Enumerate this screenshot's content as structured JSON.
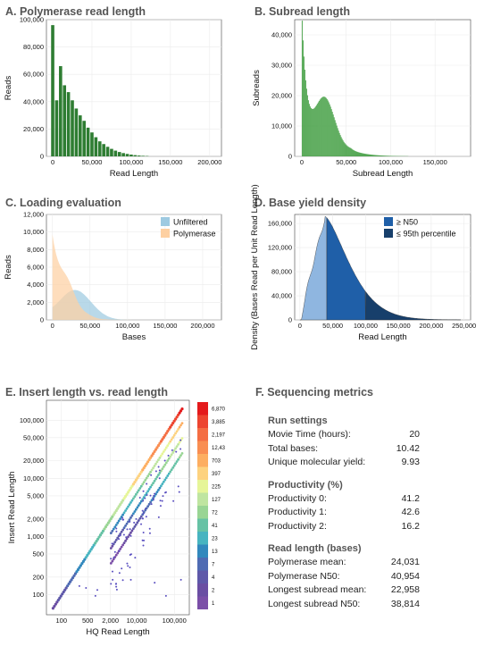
{
  "chart_data": [
    {
      "id": "A",
      "type": "bar",
      "title": "A. Polymerase read length",
      "xlabel": "Read Length",
      "ylabel": "Reads",
      "xlim": [
        -8000,
        215000
      ],
      "ylim": [
        0,
        100000
      ],
      "xticks": [
        0,
        50000,
        100000,
        150000,
        200000
      ],
      "xtick_labels": [
        "0",
        "50,000",
        "100,000",
        "150,000",
        "200,000"
      ],
      "yticks": [
        0,
        20000,
        40000,
        60000,
        80000,
        100000
      ],
      "ytick_labels": [
        "0",
        "20,000",
        "40,000",
        "60,000",
        "80,000",
        "100,000"
      ],
      "bin_width": 5000,
      "x": [
        0,
        5000,
        10000,
        15000,
        20000,
        25000,
        30000,
        35000,
        40000,
        45000,
        50000,
        55000,
        60000,
        65000,
        70000,
        75000,
        80000,
        85000,
        90000,
        95000,
        100000,
        105000,
        110000,
        115000,
        120000
      ],
      "values": [
        96000,
        41000,
        66000,
        52000,
        47000,
        41000,
        35000,
        30000,
        26000,
        21000,
        17500,
        14000,
        11000,
        9000,
        7000,
        5500,
        4200,
        3200,
        2400,
        1800,
        1300,
        900,
        600,
        400,
        250
      ],
      "color": "#2e7d32"
    },
    {
      "id": "B",
      "type": "bar",
      "title": "B. Subread length",
      "xlabel": "Subread Length",
      "ylabel": "Subreads",
      "xlim": [
        -8000,
        190000
      ],
      "ylim": [
        0,
        45000
      ],
      "xticks": [
        0,
        50000,
        100000,
        150000
      ],
      "xtick_labels": [
        "0",
        "50,000",
        "100,000",
        "150,000"
      ],
      "yticks": [
        0,
        10000,
        20000,
        30000,
        40000
      ],
      "ytick_labels": [
        "0",
        "10,000",
        "20,000",
        "30,000",
        "40,000"
      ],
      "color": "#3a9a3a"
    },
    {
      "id": "C",
      "type": "area",
      "title": "C. Loading evaluation",
      "xlabel": "Bases",
      "ylabel": "Reads",
      "xlim": [
        -8000,
        225000
      ],
      "ylim": [
        0,
        12000
      ],
      "xticks": [
        0,
        50000,
        100000,
        150000,
        200000
      ],
      "xtick_labels": [
        "0",
        "50,000",
        "100,000",
        "150,000",
        "200,000"
      ],
      "yticks": [
        0,
        2000,
        4000,
        6000,
        8000,
        10000,
        12000
      ],
      "ytick_labels": [
        "0",
        "2,000",
        "4,000",
        "6,000",
        "8,000",
        "10,000",
        "12,000"
      ],
      "legend_position": "top-right",
      "series": [
        {
          "name": "Unfiltered",
          "color": "#9ecae1"
        },
        {
          "name": "Polymerase",
          "color": "#fdd0a2"
        }
      ]
    },
    {
      "id": "D",
      "type": "area",
      "title": "D. Base yield density",
      "xlabel": "Read Length",
      "ylabel": "Density (Bases Read per Unit Read Length)",
      "xlim": [
        -8000,
        260000
      ],
      "ylim": [
        0,
        175000
      ],
      "xticks": [
        0,
        50000,
        100000,
        150000,
        200000,
        250000
      ],
      "xtick_labels": [
        "0",
        "50,000",
        "100,000",
        "150,000",
        "200,000",
        "250,000"
      ],
      "yticks": [
        0,
        40000,
        80000,
        120000,
        160000
      ],
      "ytick_labels": [
        "0",
        "40,000",
        "80,000",
        "120,000",
        "160,000"
      ],
      "legend_position": "top-right",
      "thresholds": {
        "n50": 40954,
        "p95": 100000
      },
      "series": [
        {
          "name": "≥ N50",
          "color": "#1f5fa8"
        },
        {
          "name": "≤ 95th percentile",
          "color": "#173f6b"
        }
      ]
    },
    {
      "id": "E",
      "type": "heatmap",
      "title": "E. Insert length vs. read length",
      "xlabel": "HQ Read Length",
      "ylabel": "Insert Read Length",
      "xscale": "log",
      "yscale": "log",
      "xticks": [
        100,
        500,
        2000,
        10000,
        100000
      ],
      "xtick_labels": [
        "100",
        "500",
        "2,000",
        "10,000",
        "100,000"
      ],
      "yticks": [
        100,
        200,
        500,
        1000,
        2000,
        5000,
        10000,
        20000,
        50000,
        100000
      ],
      "ytick_labels": [
        "100",
        "200",
        "500",
        "1,000",
        "2,000",
        "5,000",
        "10,000",
        "20,000",
        "50,000",
        "100,000"
      ],
      "colorbar_labels": [
        "6,870",
        "3,885",
        "2,197",
        "12,43",
        "703",
        "397",
        "225",
        "127",
        "72",
        "41",
        "23",
        "13",
        "7",
        "4",
        "2",
        "1"
      ],
      "colorbar_colors": [
        "#e41a1c",
        "#ed4530",
        "#f46d43",
        "#f98e52",
        "#fdae61",
        "#fdd27f",
        "#e6f598",
        "#bfe5a0",
        "#99d594",
        "#66c2a5",
        "#47b4c0",
        "#3288bd",
        "#4f6bb3",
        "#5e58a9",
        "#6a4ea3",
        "#7b4fa8"
      ]
    }
  ],
  "metrics": {
    "title": "F. Sequencing metrics",
    "sections": [
      {
        "heading": "Run settings",
        "rows": [
          {
            "label": "Movie Time (hours):",
            "value": "20"
          },
          {
            "label": "Total bases:",
            "value": "10.42"
          },
          {
            "label": "Unique molecular yield:",
            "value": "9.93"
          }
        ]
      },
      {
        "heading": "Productivity (%)",
        "rows": [
          {
            "label": "Productivity 0:",
            "value": "41.2"
          },
          {
            "label": "Productivity 1:",
            "value": "42.6"
          },
          {
            "label": "Productivity 2:",
            "value": "16.2"
          }
        ]
      },
      {
        "heading": "Read length (bases)",
        "rows": [
          {
            "label": "Polymerase mean:",
            "value": "24,031"
          },
          {
            "label": "Polymerase N50:",
            "value": "40,954"
          },
          {
            "label": "Longest subread mean:",
            "value": "22,958"
          },
          {
            "label": "Longest subread N50:",
            "value": "38,814"
          }
        ]
      }
    ]
  }
}
